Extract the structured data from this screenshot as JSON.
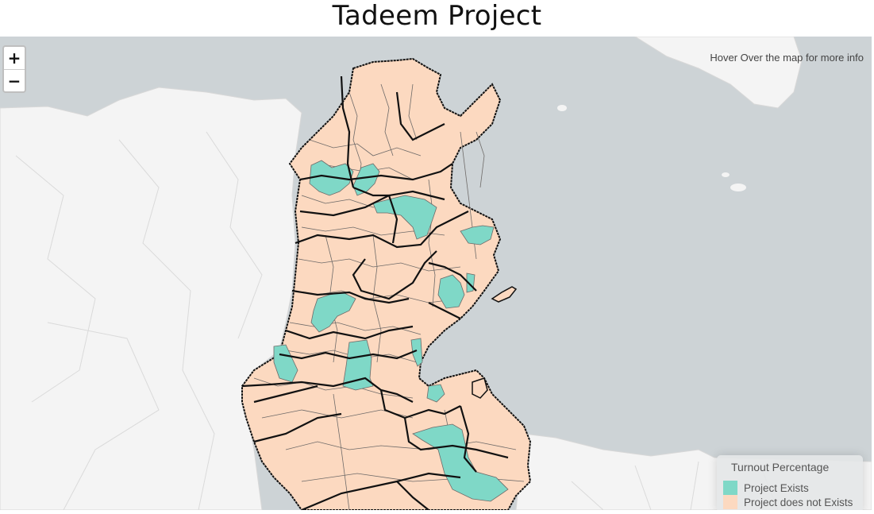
{
  "page": {
    "title": "Tadeem Project"
  },
  "map": {
    "zoom_in_label": "+",
    "zoom_out_label": "−",
    "info_text": "Hover Over the map for more info",
    "colors": {
      "sea": "#cdd3d6",
      "land": "#f4f4f4",
      "project_exists": "#7fd8c7",
      "project_not_exists": "#fcd9c0",
      "delegation_border": "#6e6a68",
      "governorate_border": "#111111"
    }
  },
  "legend": {
    "title": "Turnout Percentage",
    "items": [
      {
        "label": "Project Exists",
        "color": "#7fd8c7"
      },
      {
        "label": "Project does not Exists",
        "color": "#fcd9c0"
      }
    ]
  }
}
